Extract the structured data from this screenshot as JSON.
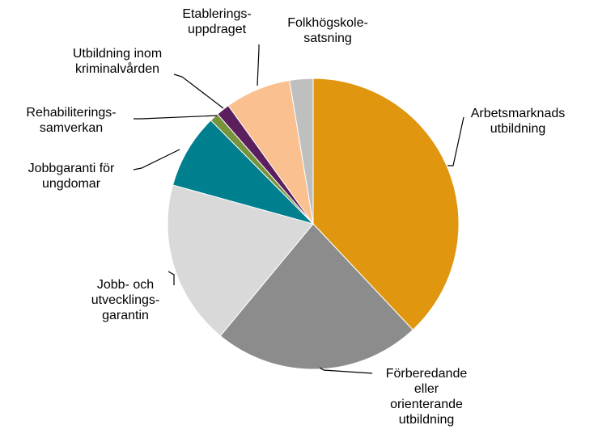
{
  "chart_data": {
    "type": "pie",
    "categories": [
      "Arbetsmarknads\nutbildning",
      "Förberedande\neller\norienterande\nutbildning",
      "Jobb- och\nutvecklings-\ngarantin",
      "Jobbgaranti för\nungdomar",
      "Rehabiliterings-\nsamverkan",
      "Utbildning inom\nkriminalvården",
      "Etablerings-\nuppdraget",
      "Folkhögskole-\nsatsning"
    ],
    "values": [
      38,
      23,
      18.3,
      8.3,
      1,
      1.5,
      7.3,
      2.6
    ],
    "colors": [
      "#e0960f",
      "#8c8c8c",
      "#d9d9d9",
      "#00808f",
      "#77933c",
      "#5b1f5e",
      "#fac090",
      "#bfbfbf"
    ]
  }
}
